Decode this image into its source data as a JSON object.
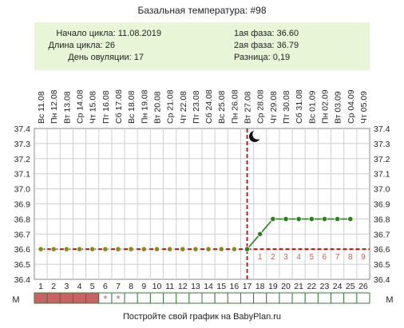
{
  "title": "Базальная температура: #98",
  "summary": {
    "left": [
      {
        "label": "Начало цикла:",
        "value": "11.08.2019"
      },
      {
        "label": "Длина цикла:",
        "value": "26"
      },
      {
        "label": "День овуляции:",
        "value": "17"
      }
    ],
    "right": [
      {
        "label": "1ая фаза:",
        "value": "36.60"
      },
      {
        "label": "2ая фаза:",
        "value": "36.79"
      },
      {
        "label": "Разница:",
        "value": "0,19"
      }
    ]
  },
  "footer": "Постройте свой график на BabyPlan.ru",
  "m_label": "М",
  "colors": {
    "summary_bg": "#e8f5d6",
    "grid": "#cfcfcf",
    "coverline": "#cc0000",
    "dot_fill": "#2e7d1e",
    "dot_phase1_fill": "#8a8a1a",
    "line": "#2e7d1e",
    "phase1_line": "#cc0000",
    "menses_fill": "#c96262",
    "menses_border": "#3a7a3a",
    "phase2_day_numbers": "#c96262"
  },
  "chart_data": {
    "type": "line",
    "title": "Базальная температура: #98",
    "x_dates": [
      "Вс 11.08",
      "Пн 12.08",
      "Вт 13.08",
      "Ср 14.08",
      "Чт 15.08",
      "Пт 16.08",
      "Сб 17.08",
      "Вс 18.08",
      "Пн 19.08",
      "Вт 20.08",
      "Ср 21.08",
      "Чт 22.08",
      "Пт 23.08",
      "Сб 24.08",
      "Вс 25.08",
      "Пн 26.08",
      "Вт 27.08",
      "Ср 28.08",
      "Чт 29.08",
      "Пт 30.08",
      "Сб 31.08",
      "Вс 01.09",
      "Пн 02.09",
      "Вт 03.09",
      "Ср 04.09",
      "Чт 05.09"
    ],
    "x_days": [
      "1",
      "2",
      "3",
      "4",
      "5",
      "6",
      "7",
      "8",
      "9",
      "10",
      "11",
      "12",
      "13",
      "14",
      "15",
      "16",
      "17",
      "18",
      "19",
      "20",
      "21",
      "22",
      "23",
      "24",
      "25",
      "26"
    ],
    "y_ticks": [
      "37.4",
      "37.3",
      "37.2",
      "37.1",
      "37.0",
      "36.9",
      "36.8",
      "36.7",
      "36.6",
      "36.5",
      "36.4"
    ],
    "ylim": [
      36.4,
      37.4
    ],
    "series": [
      {
        "values": [
          36.6,
          36.6,
          36.6,
          36.6,
          36.6,
          36.6,
          36.6,
          36.6,
          36.6,
          36.6,
          36.6,
          36.6,
          36.6,
          36.6,
          36.6,
          36.6,
          36.6,
          36.7,
          36.8,
          36.8,
          36.8,
          36.8,
          36.8,
          36.8,
          36.8
        ]
      }
    ],
    "coverline": 36.6,
    "ovulation_day": 17,
    "phase2_day_labels": [
      "1",
      "2",
      "3",
      "4",
      "5",
      "6",
      "7",
      "8",
      "9"
    ],
    "menses_days": [
      1,
      2,
      3,
      4,
      5,
      6,
      7
    ],
    "menses_marks": [
      {
        "day": 6,
        "mark": "*"
      },
      {
        "day": 7,
        "mark": "*"
      }
    ],
    "grid": true
  }
}
